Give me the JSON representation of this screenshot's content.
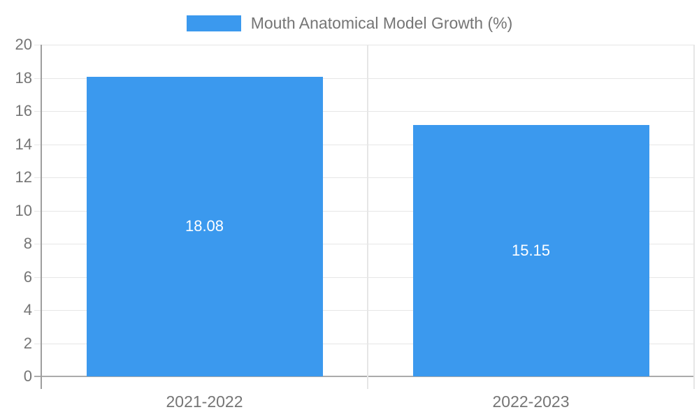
{
  "chart_data": {
    "type": "bar",
    "title": "Mouth Anatomical Model Growth (%)",
    "categories": [
      "2021-2022",
      "2022-2023"
    ],
    "values": [
      18.08,
      15.15
    ],
    "bar_labels": [
      "18.08",
      "15.15"
    ],
    "xlabel": "",
    "ylabel": "",
    "ylim": [
      0,
      20
    ],
    "yticks": [
      0,
      2,
      4,
      6,
      8,
      10,
      12,
      14,
      16,
      18,
      20
    ],
    "grid": true,
    "legend_position": "top-center",
    "colors": {
      "bar": "#3B99EE",
      "bar_value_text": "#ffffff",
      "axis_text": "#757575",
      "gridline": "#e6e6e6",
      "axis_line": "#9e9e9e",
      "zero_line": "#ababab"
    }
  }
}
